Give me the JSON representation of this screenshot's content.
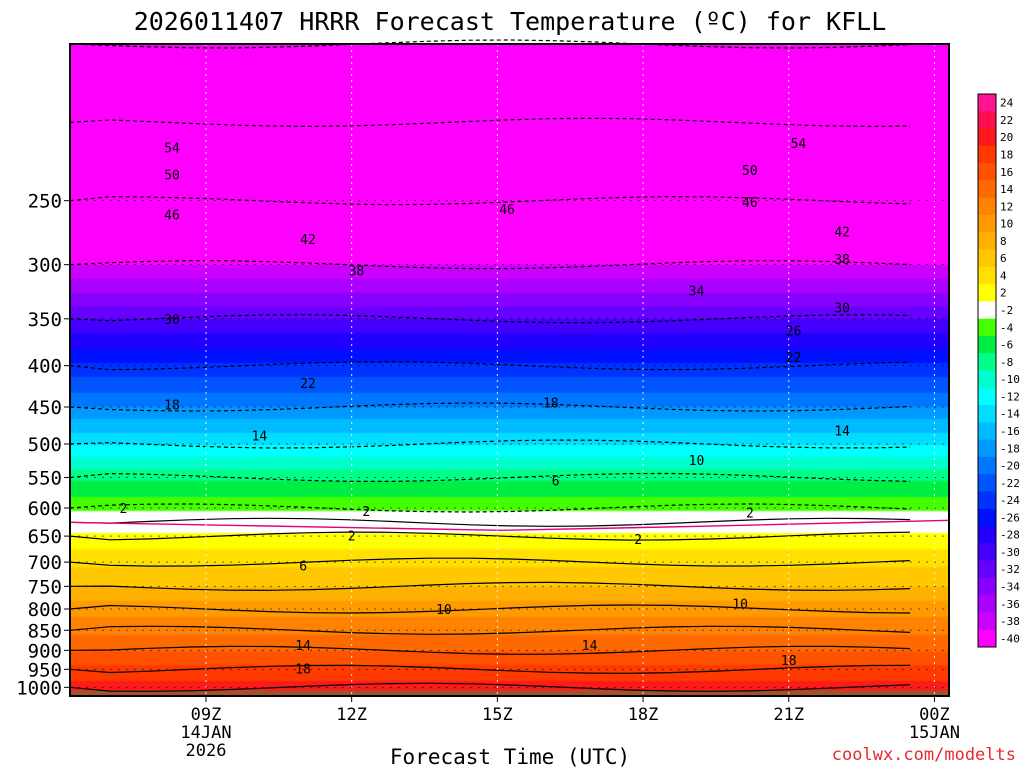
{
  "chart_data": {
    "type": "heatmap",
    "title": "2026011407 HRRR Forecast Temperature (ºC) for KFLL",
    "xlabel": "Forecast Time (UTC)",
    "ylabel": "",
    "credit": "coolwx.com/modelts",
    "x_range_hours": [
      6.2,
      24.3
    ],
    "y_range_hpa": [
      1025,
      160
    ],
    "x_ticks": [
      {
        "hour": 9,
        "lines": [
          "09Z",
          "14JAN",
          "2026"
        ]
      },
      {
        "hour": 12,
        "lines": [
          "12Z"
        ]
      },
      {
        "hour": 15,
        "lines": [
          "15Z"
        ]
      },
      {
        "hour": 18,
        "lines": [
          "18Z"
        ]
      },
      {
        "hour": 21,
        "lines": [
          "21Z"
        ]
      },
      {
        "hour": 24,
        "lines": [
          "00Z",
          "15JAN"
        ]
      }
    ],
    "y_ticks": [
      250,
      300,
      350,
      400,
      450,
      500,
      550,
      600,
      650,
      700,
      750,
      800,
      850,
      900,
      950,
      1000
    ],
    "colorbar": {
      "levels": [
        24,
        22,
        20,
        18,
        16,
        14,
        12,
        10,
        8,
        6,
        4,
        2,
        -2,
        -4,
        -6,
        -8,
        -10,
        -12,
        -14,
        -16,
        -18,
        -20,
        -22,
        -24,
        -26,
        -28,
        -30,
        -32,
        -34,
        -36,
        -38,
        -40
      ],
      "colors": [
        "#ff1493",
        "#ff1050",
        "#ff1a1a",
        "#ff3a00",
        "#ff5200",
        "#ff6a00",
        "#ff8200",
        "#ff9a00",
        "#ffb000",
        "#ffc800",
        "#ffe000",
        "#ffff00",
        "#ffffff",
        "#44ff00",
        "#00ee44",
        "#00ff88",
        "#00ffcc",
        "#00ffff",
        "#00ddff",
        "#00bbff",
        "#0099ff",
        "#0077ff",
        "#0055ff",
        "#0033ff",
        "#0011ff",
        "#2200ff",
        "#4400ff",
        "#6600ff",
        "#8800ff",
        "#aa00ff",
        "#cc00ff",
        "#ff00ff"
      ]
    },
    "profile_temperature_c": {
      "pressure_hpa": [
        1000,
        950,
        900,
        850,
        800,
        750,
        700,
        650,
        625,
        600,
        550,
        500,
        450,
        400,
        350,
        300,
        250,
        200,
        160
      ],
      "values": [
        21,
        18.5,
        16,
        13.5,
        11,
        8,
        5.5,
        2.5,
        0.5,
        -2.5,
        -6.5,
        -12,
        -18,
        -23.5,
        -30,
        -38,
        -46,
        -55,
        -62
      ]
    },
    "contour_labels": [
      {
        "text": "54",
        "hour": 8.3,
        "p": 215
      },
      {
        "text": "54",
        "hour": 21.2,
        "p": 212
      },
      {
        "text": "50",
        "hour": 8.3,
        "p": 232
      },
      {
        "text": "50",
        "hour": 20.2,
        "p": 229
      },
      {
        "text": "46",
        "hour": 8.3,
        "p": 260
      },
      {
        "text": "46",
        "hour": 15.2,
        "p": 256
      },
      {
        "text": "46",
        "hour": 20.2,
        "p": 251
      },
      {
        "text": "42",
        "hour": 11.1,
        "p": 279
      },
      {
        "text": "42",
        "hour": 22.1,
        "p": 273
      },
      {
        "text": "38",
        "hour": 12.1,
        "p": 305
      },
      {
        "text": "38",
        "hour": 22.1,
        "p": 295
      },
      {
        "text": "34",
        "hour": 19.1,
        "p": 323
      },
      {
        "text": "30",
        "hour": 8.3,
        "p": 350
      },
      {
        "text": "30",
        "hour": 22.1,
        "p": 339
      },
      {
        "text": "26",
        "hour": 21.1,
        "p": 362
      },
      {
        "text": "22",
        "hour": 11.1,
        "p": 420
      },
      {
        "text": "22",
        "hour": 21.1,
        "p": 390
      },
      {
        "text": "18",
        "hour": 8.3,
        "p": 447
      },
      {
        "text": "18",
        "hour": 16.1,
        "p": 444
      },
      {
        "text": "14",
        "hour": 10.1,
        "p": 488
      },
      {
        "text": "14",
        "hour": 22.1,
        "p": 481
      },
      {
        "text": "10",
        "hour": 19.1,
        "p": 523
      },
      {
        "text": "6",
        "hour": 16.2,
        "p": 555
      },
      {
        "text": "2",
        "hour": 7.3,
        "p": 600
      },
      {
        "text": "2",
        "hour": 12.3,
        "p": 605
      },
      {
        "text": "2",
        "hour": 20.2,
        "p": 608
      },
      {
        "text": "2",
        "hour": 12.0,
        "p": 649
      },
      {
        "text": "2",
        "hour": 17.9,
        "p": 655
      },
      {
        "text": "6",
        "hour": 11.0,
        "p": 707
      },
      {
        "text": "10",
        "hour": 13.9,
        "p": 800
      },
      {
        "text": "10",
        "hour": 20.0,
        "p": 788
      },
      {
        "text": "14",
        "hour": 11.0,
        "p": 887
      },
      {
        "text": "14",
        "hour": 16.9,
        "p": 887
      },
      {
        "text": "18",
        "hour": 11.0,
        "p": 948
      },
      {
        "text": "18",
        "hour": 21.0,
        "p": 925
      }
    ]
  }
}
